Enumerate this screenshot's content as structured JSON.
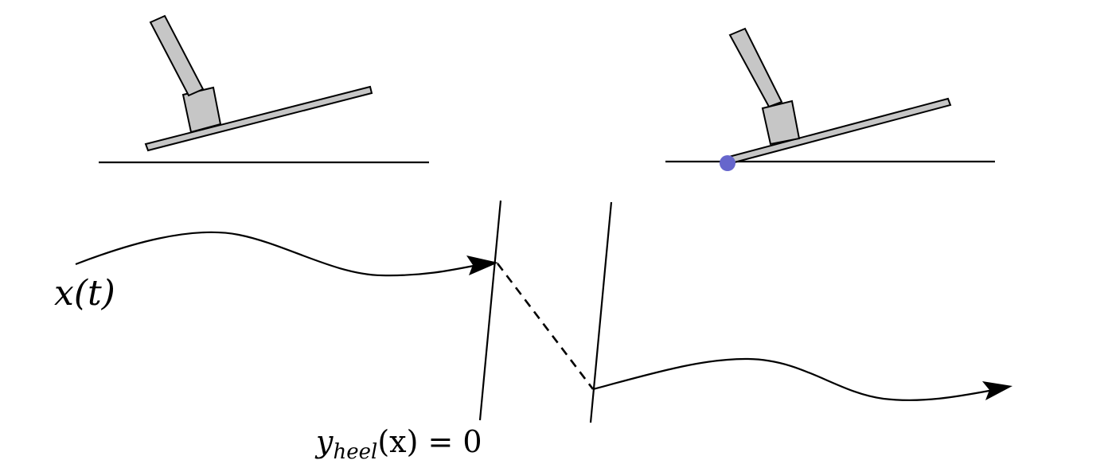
{
  "labels": {
    "trajectory": "x(t)",
    "guard_var": "y",
    "guard_sub": "heel",
    "guard_rest": "(x) = 0"
  },
  "colors": {
    "foot_fill": "#c6c6c6",
    "stroke": "#000000",
    "contact_point": "#6666cc"
  },
  "icons": {
    "foot_before": "foot-on-flat-ground",
    "foot_after": "foot-with-heel-contact"
  }
}
